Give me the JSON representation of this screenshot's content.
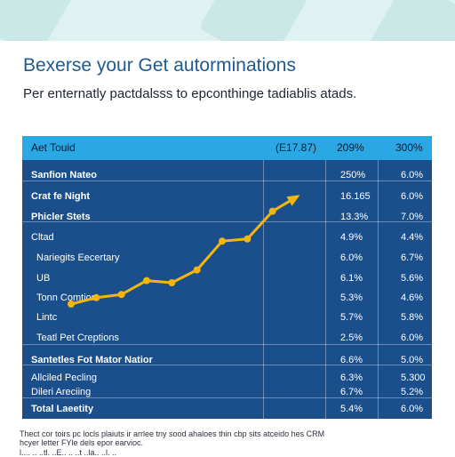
{
  "page": {
    "title": "Bexerse your Get autorminations",
    "subtitle": "Per enternatly pactdalsss to epconthinge tadiablis atads."
  },
  "table": {
    "headers": [
      "Aet Touid",
      "(E17.87)",
      "209%",
      "300%"
    ],
    "rows": [
      {
        "label": "Sanfion Nateo",
        "v1": "250%",
        "v2": "6.0%"
      },
      {
        "label": "Crat fe Night",
        "v1": "16.165",
        "v2": "6.0%"
      },
      {
        "label": "Phicler Stets",
        "v1": "13.3%",
        "v2": "7.0%"
      },
      {
        "label": "Cltad",
        "v1": "4.9%",
        "v2": "4.4%"
      },
      {
        "label": "Nariegits Eecertary",
        "v1": "6.0%",
        "v2": "6.7%"
      },
      {
        "label": "UB",
        "v1": "6.1%",
        "v2": "5.6%"
      },
      {
        "label": "Tonn Comtiors",
        "v1": "5.3%",
        "v2": "4.6%"
      },
      {
        "label": "Lintc",
        "v1": "5.7%",
        "v2": "5.8%"
      },
      {
        "label": "Teatl Pet Creptions",
        "v1": "2.5%",
        "v2": "6.0%"
      },
      {
        "label": "Santetles Fot Mator Natior",
        "v1": "6.6%",
        "v2": "5.0%"
      },
      {
        "label": "Allciled Pecling",
        "v1": "6.3%",
        "v2": "5.300"
      },
      {
        "label": "Dileri Areciing",
        "v1": "6.7%",
        "v2": "5.2%"
      },
      {
        "label": "Total Laeetity",
        "v1": "5.4%",
        "v2": "6.0%"
      }
    ]
  },
  "chart_data": {
    "type": "line",
    "x": [
      1,
      2,
      3,
      4,
      5,
      6,
      7,
      8,
      9,
      10
    ],
    "series": [
      {
        "values": [
          1.0,
          1.6,
          1.9,
          3.2,
          3.0,
          4.2,
          6.9,
          7.1,
          9.7,
          11.1
        ]
      }
    ],
    "ylim": [
      0,
      12
    ],
    "grid": false,
    "line_color": "#f5b50f"
  },
  "colors": {
    "table_bg": "#1b4f8c",
    "header_bg": "#29a8e3",
    "title": "#1f5a8e",
    "accent": "#f5b50f"
  },
  "footnote": {
    "line1": "Thect cor toirs pc locls plaiuts ir arrlee tny sood ahaloes thin cbp sits atceido hes CRM",
    "line2": "hcyer letter FYle dels epor earvioc.",
    "line3": "l.... .. ..tl. ..E.. .. ..t ..la.. ..l. .."
  }
}
